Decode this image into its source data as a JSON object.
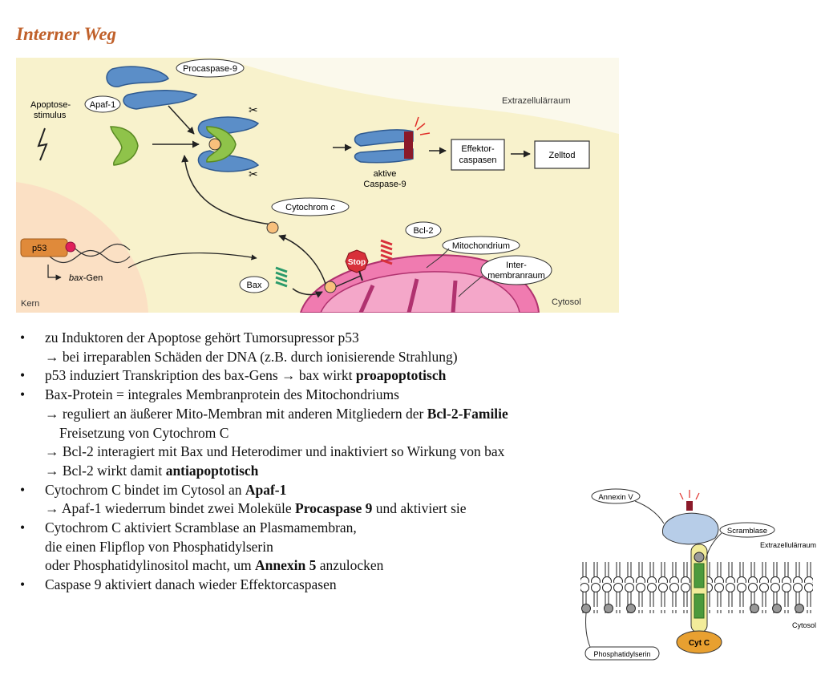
{
  "title": "Interner Weg",
  "fig1": {
    "procaspase9": "Procaspase-9",
    "apaf1": "Apaf-1",
    "stimulus1": "Apoptose-",
    "stimulus2": "stimulus",
    "extrazellular": "Extrazellulärraum",
    "effektor1": "Effektor-",
    "effektor2": "caspasen",
    "zelltod": "Zelltod",
    "aktive1": "aktive",
    "aktive2": "Caspase-9",
    "cytochrom": "Cytochrom ",
    "cytochrom_c": "c",
    "bcl2": "Bcl-2",
    "p53": "p53",
    "mitochondrium": "Mitochondrium",
    "inter1": "Inter-",
    "inter2": "membranraum",
    "stop": "Stop",
    "bax": "Bax",
    "baxgen": "bax",
    "baxgen_suffix": "-Gen",
    "kern": "Kern",
    "cytosol": "Cytosol"
  },
  "fig2": {
    "annexin": "Annexin V",
    "scramblase": "Scramblase",
    "extrazellular": "Extrazellulärraum",
    "cytosol": "Cytosol",
    "cytc": "Cyt C",
    "phosphatidylserin": "Phosphatidylserin"
  },
  "bullets": {
    "b1": "zu Induktoren der Apoptose gehört Tumorsupressor p53",
    "b1s1": "→ bei irreparablen Schäden der DNA (z.B. durch ionisierende Strahlung)",
    "b2a": "p53 induziert Transkription des bax-Gens → bax wirkt ",
    "b2b": "proapoptotisch",
    "b3": "Bax-Protein = integrales Membranprotein des Mitochondriums",
    "b3s1a": "→ reguliert an äußerer Mito-Membran mit anderen Mitgliedern der ",
    "b3s1b": "Bcl-2-Familie",
    "b3s1c": "Freisetzung von Cytochrom C",
    "b3s2": "→ Bcl-2 interagiert mit Bax und Heterodimer und inaktiviert so Wirkung von bax",
    "b3s3a": "→ Bcl-2 wirkt damit ",
    "b3s3b": "antiapoptotisch",
    "b4a": "Cytochrom C bindet im Cytosol an ",
    "b4b": "Apaf-1",
    "b4s1a": "→ Apaf-1 wiederrum bindet zwei Moleküle ",
    "b4s1b": "Procaspase 9",
    "b4s1c": " und aktiviert sie",
    "b5": "Cytochrom C aktiviert Scramblase an Plasmamembran,",
    "b5l2": "die einen Flipflop von Phosphatidylserin",
    "b5l3a": "oder Phosphatidylinositol macht, um ",
    "b5l3b": "Annexin 5",
    "b5l3c": " anzulocken",
    "b6": "Caspase 9 aktiviert danach wieder Effektorcaspasen",
    "bullet": "•"
  }
}
